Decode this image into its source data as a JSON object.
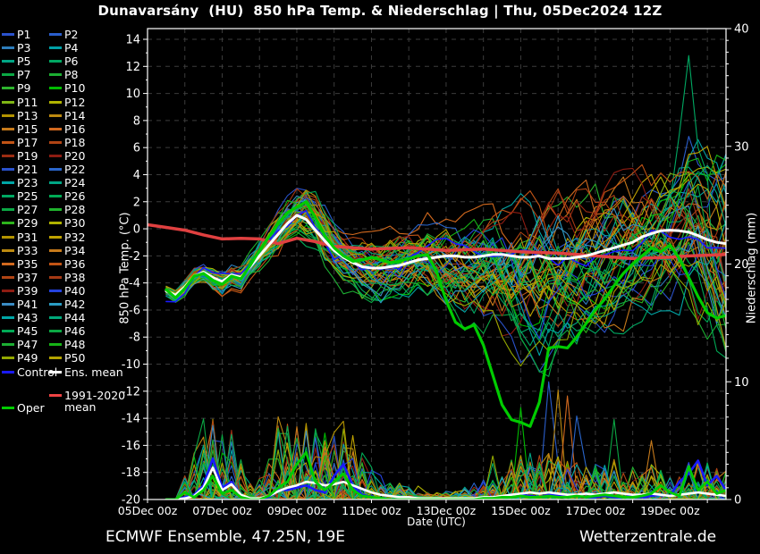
{
  "title": "Dunavarsány  (HU)  850 hPa Temp. & Niederschlag | Thu, 05Dec2024 12Z",
  "footer": {
    "left": "ECMWF Ensemble, 47.25N, 19E",
    "right": "Wetterzentrale.de"
  },
  "legend": {
    "members": [
      {
        "label": "P1",
        "color": "#2a52cc"
      },
      {
        "label": "P2",
        "color": "#2a5ecc"
      },
      {
        "label": "P3",
        "color": "#2d7dbb"
      },
      {
        "label": "P4",
        "color": "#00a0a6"
      },
      {
        "label": "P5",
        "color": "#00a685"
      },
      {
        "label": "P6",
        "color": "#00a862"
      },
      {
        "label": "P7",
        "color": "#0ba844"
      },
      {
        "label": "P8",
        "color": "#1cae32"
      },
      {
        "label": "P9",
        "color": "#2db32d"
      },
      {
        "label": "P10",
        "color": "#00bb00"
      },
      {
        "label": "P11",
        "color": "#7fb615"
      },
      {
        "label": "P12",
        "color": "#b0b300"
      },
      {
        "label": "P13",
        "color": "#b39300"
      },
      {
        "label": "P14",
        "color": "#bd8a10"
      },
      {
        "label": "P15",
        "color": "#c67a1b"
      },
      {
        "label": "P16",
        "color": "#d2691e"
      },
      {
        "label": "P17",
        "color": "#c25415"
      },
      {
        "label": "P18",
        "color": "#b04414"
      },
      {
        "label": "P19",
        "color": "#9c2c12"
      },
      {
        "label": "P20",
        "color": "#8e1c12"
      },
      {
        "label": "P21",
        "color": "#2a52cc"
      },
      {
        "label": "P22",
        "color": "#2a66cc"
      },
      {
        "label": "P23",
        "color": "#00a6a6"
      },
      {
        "label": "P24",
        "color": "#00a685"
      },
      {
        "label": "P25",
        "color": "#00a862"
      },
      {
        "label": "P26",
        "color": "#00aa55"
      },
      {
        "label": "P27",
        "color": "#0ba844"
      },
      {
        "label": "P28",
        "color": "#1fb32d"
      },
      {
        "label": "P29",
        "color": "#2db31c"
      },
      {
        "label": "P30",
        "color": "#b0b300"
      },
      {
        "label": "P31",
        "color": "#b39300"
      },
      {
        "label": "P32",
        "color": "#bfa300"
      },
      {
        "label": "P33",
        "color": "#bd8a10"
      },
      {
        "label": "P34",
        "color": "#c67a1b"
      },
      {
        "label": "P35",
        "color": "#d2691e"
      },
      {
        "label": "P36",
        "color": "#c25415"
      },
      {
        "label": "P37",
        "color": "#b04414"
      },
      {
        "label": "P38",
        "color": "#a53914"
      },
      {
        "label": "P39",
        "color": "#8e1c12"
      },
      {
        "label": "P40",
        "color": "#2442dd"
      },
      {
        "label": "P41",
        "color": "#3a8cc4"
      },
      {
        "label": "P42",
        "color": "#2a9cc4"
      },
      {
        "label": "P43",
        "color": "#00a6a6"
      },
      {
        "label": "P44",
        "color": "#00a87a"
      },
      {
        "label": "P45",
        "color": "#00aa55"
      },
      {
        "label": "P46",
        "color": "#0ba844"
      },
      {
        "label": "P47",
        "color": "#1cae32"
      },
      {
        "label": "P48",
        "color": "#16b316"
      },
      {
        "label": "P49",
        "color": "#93a800"
      },
      {
        "label": "P50",
        "color": "#b3a300"
      }
    ],
    "control": {
      "label": "Control",
      "color": "#1a1aff"
    },
    "ens_mean": {
      "label": "Ens. mean",
      "color": "#ffffff"
    },
    "climate": {
      "label": "1991-2020 mean",
      "color": "#ee4444"
    },
    "oper": {
      "label": "Oper",
      "color": "#00cc00"
    }
  },
  "chart_data": {
    "type": "line",
    "title": "Dunavarsány (HU) 850 hPa Temp. & Niederschlag | Thu, 05Dec2024 12Z",
    "x_axis": {
      "label": "Date (UTC)",
      "tick_labels": [
        "05Dec 00z",
        "07Dec 00z",
        "09Dec 00z",
        "11Dec 00z",
        "13Dec 00z",
        "15Dec 00z",
        "17Dec 00z",
        "19Dec 00z"
      ],
      "tick_days": [
        0,
        2,
        4,
        6,
        8,
        10,
        12,
        14
      ],
      "days_span": 15.5,
      "gridline_every_days": 1
    },
    "y_left": {
      "label": "850 hPa Temp. (°C)",
      "min": -20,
      "max": 14,
      "tick_step": 2
    },
    "y_right": {
      "label": "Niederschlag (mm)",
      "min": 0,
      "max": 40,
      "tick_step": 10
    },
    "time": {
      "t0_days": 0.5,
      "dt_days": 0.25,
      "n": 61,
      "run_start": "05Dec2024 12Z"
    },
    "colors": {
      "ens_mean": "#ffffff",
      "oper": "#00cc00",
      "control": "#1a1aff",
      "climate_mean": "#e04040",
      "grid": "#3c3c3c",
      "frame": "#ffffff",
      "background": "#000000"
    },
    "series": {
      "ens_mean_temp": [
        -4.6,
        -4.9,
        -4.3,
        -3.5,
        -3.2,
        -3.6,
        -3.9,
        -3.4,
        -3.6,
        -2.8,
        -2.0,
        -1.2,
        -0.4,
        0.4,
        1.0,
        0.7,
        -0.1,
        -0.9,
        -1.6,
        -2.1,
        -2.5,
        -2.8,
        -2.9,
        -2.9,
        -2.8,
        -2.7,
        -2.5,
        -2.3,
        -2.2,
        -2.1,
        -2.0,
        -2.0,
        -2.1,
        -2.1,
        -2.0,
        -1.9,
        -1.9,
        -2.0,
        -2.1,
        -2.1,
        -2.0,
        -2.2,
        -2.2,
        -2.2,
        -2.1,
        -2.0,
        -1.8,
        -1.6,
        -1.4,
        -1.2,
        -1.0,
        -0.6,
        -0.35,
        -0.15,
        -0.1,
        -0.15,
        -0.25,
        -0.5,
        -0.8,
        -1.0,
        -1.1
      ],
      "oper_temp": [
        -4.5,
        -5.1,
        -4.4,
        -3.5,
        -3.3,
        -3.8,
        -4.1,
        -3.5,
        -3.7,
        -2.7,
        -1.6,
        -0.6,
        0.4,
        1.2,
        1.6,
        2.0,
        0.8,
        -0.5,
        -1.4,
        -2.0,
        -2.4,
        -2.3,
        -2.1,
        -2.3,
        -2.5,
        -2.4,
        -2.2,
        -2.0,
        -1.9,
        -3.2,
        -5.3,
        -6.9,
        -7.4,
        -7.1,
        -8.6,
        -10.8,
        -13.0,
        -14.1,
        -14.3,
        -14.6,
        -12.8,
        -8.8,
        -8.7,
        -8.8,
        -8.0,
        -7.0,
        -6.0,
        -5.2,
        -4.2,
        -3.3,
        -2.6,
        -2.0,
        -1.4,
        -1.7,
        -1.2,
        -2.2,
        -3.6,
        -5.0,
        -6.2,
        -6.6,
        -6.4
      ],
      "climate_mean_temp_12h": [
        0.3,
        0.1,
        -0.1,
        -0.45,
        -0.75,
        -0.7,
        -0.75,
        -1.1,
        -0.7,
        -0.95,
        -1.3,
        -1.4,
        -1.5,
        -1.45,
        -1.4,
        -1.5,
        -1.6,
        -1.55,
        -1.5,
        -1.6,
        -1.7,
        -1.75,
        -1.8,
        -1.9,
        -2.0,
        -2.1,
        -2.2,
        -2.15,
        -2.1,
        -2.0,
        -1.95,
        -1.9
      ],
      "ens_mean_precip": [
        0,
        0,
        0.1,
        0.3,
        1.0,
        2.7,
        0.8,
        1.3,
        0.4,
        0.1,
        0.1,
        0.3,
        0.7,
        1.0,
        1.2,
        1.5,
        1.4,
        1.2,
        1.3,
        1.5,
        1.2,
        0.9,
        0.6,
        0.4,
        0.3,
        0.2,
        0.2,
        0.1,
        0.1,
        0.1,
        0.1,
        0.1,
        0.1,
        0.1,
        0.2,
        0.2,
        0.3,
        0.4,
        0.5,
        0.6,
        0.5,
        0.6,
        0.5,
        0.4,
        0.4,
        0.5,
        0.4,
        0.5,
        0.6,
        0.5,
        0.4,
        0.4,
        0.5,
        0.4,
        0.3,
        0.4,
        0.5,
        0.6,
        0.5,
        0.4,
        0.3
      ],
      "oper_precip": [
        0,
        0,
        0.6,
        0.2,
        0.8,
        2.0,
        0.5,
        0.8,
        0.2,
        0,
        0,
        0.3,
        1.0,
        1.5,
        3.0,
        4.0,
        1.5,
        0.8,
        1.5,
        2.2,
        0.8,
        0.3,
        0.2,
        0.1,
        0,
        0,
        0,
        0,
        0,
        0,
        0,
        0,
        0,
        0,
        0.1,
        0.1,
        0.2,
        0.2,
        0.3,
        0.2,
        0.2,
        0.3,
        0.2,
        0.2,
        0.3,
        0.2,
        0.3,
        0.4,
        0.3,
        0.2,
        0.2,
        0.3,
        0.5,
        1.2,
        0.6,
        0.3,
        2.8,
        0.8,
        1.5,
        0.5,
        0.8
      ],
      "control_precip": [
        0,
        0,
        0.2,
        0.4,
        1.2,
        3.5,
        1.0,
        1.5,
        0.3,
        0.1,
        0,
        0.2,
        0.8,
        0.8,
        1.0,
        1.2,
        0.8,
        0.6,
        2.0,
        3.0,
        1.2,
        0.4,
        0.2,
        0.1,
        0,
        0,
        0,
        0,
        0,
        0,
        0,
        0,
        0,
        0,
        0.1,
        0.1,
        0.2,
        0.3,
        0.4,
        0.3,
        0.2,
        0.4,
        0.3,
        0.2,
        0.3,
        0.2,
        0.2,
        0.3,
        0.2,
        0.2,
        0.3,
        0.2,
        0.3,
        0.4,
        0.3,
        1.5,
        2.2,
        3.3,
        1.2,
        2.0,
        0.8
      ],
      "envelope_temp_min": [
        -5.0,
        -5.6,
        -5.2,
        -4.4,
        -4.2,
        -4.8,
        -5.2,
        -4.6,
        -5.0,
        -4.2,
        -3.6,
        -2.8,
        -2.2,
        -1.6,
        -1.2,
        -1.6,
        -2.4,
        -3.4,
        -4.2,
        -4.8,
        -5.4,
        -5.8,
        -6.0,
        -6.2,
        -6.2,
        -6.0,
        -5.8,
        -5.6,
        -5.6,
        -6.0,
        -6.6,
        -7.2,
        -7.6,
        -7.8,
        -8.2,
        -8.8,
        -9.6,
        -10.2,
        -10.8,
        -11.2,
        -11.4,
        -11.0,
        -10.6,
        -10.2,
        -10.0,
        -9.6,
        -9.0,
        -8.6,
        -8.2,
        -7.8,
        -7.4,
        -7.0,
        -6.8,
        -6.6,
        -6.6,
        -6.8,
        -7.2,
        -8.0,
        -9.0,
        -10.5,
        -12.5
      ],
      "envelope_temp_max": [
        -4.2,
        -4.3,
        -3.6,
        -2.7,
        -2.4,
        -2.7,
        -2.9,
        -2.3,
        -2.4,
        -1.4,
        -0.4,
        0.6,
        1.6,
        2.6,
        3.4,
        4.2,
        3.2,
        2.2,
        1.2,
        0.6,
        0.2,
        -0.1,
        -0.2,
        -0.1,
        0.2,
        0.4,
        0.8,
        1.0,
        1.2,
        1.2,
        1.2,
        1.4,
        1.4,
        1.6,
        1.8,
        2.0,
        2.2,
        2.4,
        2.6,
        2.8,
        3.0,
        3.2,
        3.4,
        3.4,
        3.6,
        3.6,
        3.8,
        4.0,
        4.2,
        4.4,
        4.6,
        4.8,
        5.2,
        5.6,
        6.0,
        7.0,
        8.5,
        8.0,
        7.0,
        7.5,
        8.5
      ],
      "precip_activity": [
        0,
        0,
        0.3,
        0.6,
        1.0,
        1.0,
        0.8,
        0.9,
        0.5,
        0.2,
        0.3,
        0.6,
        0.9,
        1.0,
        1.0,
        1.0,
        0.9,
        0.9,
        0.9,
        1.0,
        0.8,
        0.6,
        0.4,
        0.3,
        0.2,
        0.2,
        0.15,
        0.1,
        0.1,
        0.1,
        0.1,
        0.1,
        0.15,
        0.2,
        0.25,
        0.3,
        0.4,
        0.5,
        0.55,
        0.6,
        0.55,
        0.6,
        0.55,
        0.5,
        0.45,
        0.5,
        0.45,
        0.5,
        0.5,
        0.45,
        0.4,
        0.4,
        0.45,
        0.4,
        0.35,
        0.4,
        0.45,
        0.5,
        0.45,
        0.4,
        0.35
      ]
    },
    "member_temp_overrides": {
      "6": {
        "54": 2.0,
        "55": 7.0,
        "56": 12.8,
        "57": 6.0,
        "58": 4.0
      }
    },
    "member_precip_overrides": {
      "1": {
        "5": 5.0
      },
      "2": {
        "41": 10.0,
        "42": 3.0
      },
      "4": {
        "7": 4.2
      },
      "7": {
        "12": 5.6,
        "13": 5.6
      },
      "10": {
        "38": 7.8
      },
      "13": {
        "15": 6.2
      },
      "14": {
        "42": 9.3
      },
      "15": {
        "52": 5.0
      },
      "16": {
        "43": 8.8
      },
      "21": {
        "18": 5.4
      },
      "22": {
        "44": 7.1
      },
      "27": {
        "48": 6.8
      }
    }
  }
}
